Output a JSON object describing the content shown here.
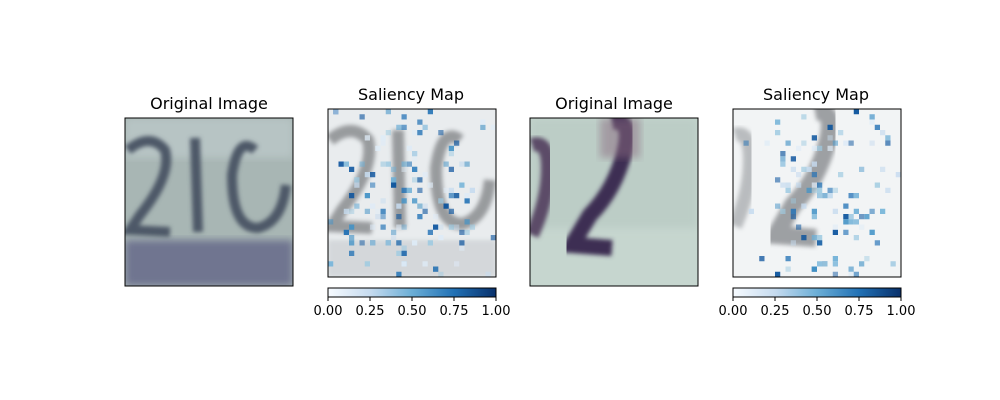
{
  "chart_data": [
    {
      "type": "image",
      "title": "Original Image",
      "content": "blurry house number digits '210', blue-grey tones"
    },
    {
      "type": "heatmap",
      "title": "Saliency Map",
      "colormap": "Blues",
      "colorbar": {
        "ticks": [
          "0.00",
          "0.25",
          "0.50",
          "0.75",
          "1.00"
        ],
        "range": [
          0,
          1
        ]
      }
    },
    {
      "type": "image",
      "title": "Original Image",
      "content": "blurry house number digits '32', green-grey background with purple digit"
    },
    {
      "type": "heatmap",
      "title": "Saliency Map",
      "colormap": "Blues",
      "colorbar": {
        "ticks": [
          "0.00",
          "0.25",
          "0.50",
          "0.75",
          "1.00"
        ],
        "range": [
          0,
          1
        ]
      }
    }
  ]
}
